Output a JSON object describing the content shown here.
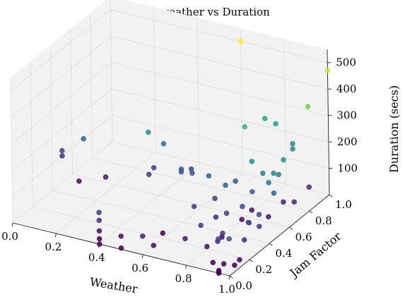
{
  "chart_data": {
    "type": "scatter3d",
    "title": "JF vs weather vs Duration",
    "xlabel": "Weather",
    "ylabel": "Jam Factor",
    "zlabel": "Duration (secs)",
    "xlim": [
      0.0,
      1.0
    ],
    "ylim": [
      0.0,
      1.0
    ],
    "zlim": [
      0,
      550
    ],
    "xticks": [
      "0.0",
      "0.2",
      "0.4",
      "0.6",
      "0.8",
      "1.0"
    ],
    "yticks": [
      "0.0",
      "0.2",
      "0.4",
      "0.6",
      "0.8",
      "1.0"
    ],
    "zticks": [
      "100",
      "200",
      "300",
      "400",
      "500"
    ],
    "zticks_values": [
      100,
      200,
      300,
      400,
      500
    ],
    "grid": true,
    "colormap": "viridis",
    "color_by": "z",
    "color_range": [
      30,
      500
    ],
    "pane_color": "#f2f2f2",
    "points": [
      {
        "x": 0.0,
        "y": 0.5,
        "z": 120
      },
      {
        "x": 0.0,
        "y": 0.5,
        "z": 100
      },
      {
        "x": 0.1,
        "y": 0.5,
        "z": 185
      },
      {
        "x": 0.1,
        "y": 0.45,
        "z": 40
      },
      {
        "x": 0.2,
        "y": 0.5,
        "z": 60
      },
      {
        "x": 0.4,
        "y": 0.5,
        "z": 270
      },
      {
        "x": 0.4,
        "y": 0.65,
        "z": 180
      },
      {
        "x": 0.4,
        "y": 0.5,
        "z": 110
      },
      {
        "x": 0.4,
        "y": 0.55,
        "z": 120
      },
      {
        "x": 0.4,
        "y": 0.0,
        "z": 120
      },
      {
        "x": 0.4,
        "y": 0.0,
        "z": 90
      },
      {
        "x": 0.4,
        "y": 0.0,
        "z": 50
      },
      {
        "x": 0.4,
        "y": 0.0,
        "z": 20
      },
      {
        "x": 0.4,
        "y": 0.0,
        "z": 0
      },
      {
        "x": 0.5,
        "y": 0.0,
        "z": 50
      },
      {
        "x": 0.5,
        "y": 0.0,
        "z": 5
      },
      {
        "x": 0.55,
        "y": 0.5,
        "z": 160
      },
      {
        "x": 0.55,
        "y": 0.5,
        "z": 150
      },
      {
        "x": 0.6,
        "y": 0.5,
        "z": 155
      },
      {
        "x": 0.55,
        "y": 0.6,
        "z": 130
      },
      {
        "x": 0.6,
        "y": 0.0,
        "z": 70
      },
      {
        "x": 0.65,
        "y": 0.0,
        "z": 45
      },
      {
        "x": 0.6,
        "y": 0.2,
        "z": 20
      },
      {
        "x": 0.6,
        "y": 1.0,
        "z": 500
      },
      {
        "x": 1.0,
        "y": 1.0,
        "z": 470
      },
      {
        "x": 1.0,
        "y": 0.8,
        "z": 395
      },
      {
        "x": 0.8,
        "y": 0.8,
        "z": 310
      },
      {
        "x": 0.85,
        "y": 0.8,
        "z": 300
      },
      {
        "x": 0.8,
        "y": 0.6,
        "z": 340
      },
      {
        "x": 0.95,
        "y": 0.75,
        "z": 260
      },
      {
        "x": 0.95,
        "y": 0.75,
        "z": 240
      },
      {
        "x": 1.0,
        "y": 0.55,
        "z": 270
      },
      {
        "x": 0.9,
        "y": 0.45,
        "z": 275
      },
      {
        "x": 1.0,
        "y": 0.45,
        "z": 250
      },
      {
        "x": 1.0,
        "y": 0.5,
        "z": 230
      },
      {
        "x": 0.95,
        "y": 0.45,
        "z": 240
      },
      {
        "x": 1.0,
        "y": 0.4,
        "z": 230
      },
      {
        "x": 0.8,
        "y": 0.5,
        "z": 165
      },
      {
        "x": 0.8,
        "y": 0.4,
        "z": 180
      },
      {
        "x": 0.9,
        "y": 0.45,
        "z": 160
      },
      {
        "x": 1.0,
        "y": 0.45,
        "z": 175
      },
      {
        "x": 0.9,
        "y": 0.35,
        "z": 135
      },
      {
        "x": 1.0,
        "y": 0.3,
        "z": 140
      },
      {
        "x": 0.7,
        "y": 0.45,
        "z": 180
      },
      {
        "x": 0.75,
        "y": 0.4,
        "z": 120
      },
      {
        "x": 0.85,
        "y": 0.3,
        "z": 115
      },
      {
        "x": 0.8,
        "y": 0.3,
        "z": 90
      },
      {
        "x": 0.95,
        "y": 0.3,
        "z": 100
      },
      {
        "x": 1.0,
        "y": 0.3,
        "z": 95
      },
      {
        "x": 1.0,
        "y": 0.15,
        "z": 90
      },
      {
        "x": 0.8,
        "y": 0.15,
        "z": 105
      },
      {
        "x": 0.9,
        "y": 0.15,
        "z": 95
      },
      {
        "x": 0.7,
        "y": 0.3,
        "z": 110
      },
      {
        "x": 1.0,
        "y": 0.2,
        "z": 140
      },
      {
        "x": 0.9,
        "y": 0.1,
        "z": 80
      },
      {
        "x": 1.0,
        "y": 0.8,
        "z": 90
      },
      {
        "x": 1.0,
        "y": 0.65,
        "z": 80
      },
      {
        "x": 0.95,
        "y": 0.65,
        "z": 70
      },
      {
        "x": 0.95,
        "y": 0.5,
        "z": 60
      },
      {
        "x": 0.85,
        "y": 0.55,
        "z": 50
      },
      {
        "x": 0.85,
        "y": 0.45,
        "z": 45
      },
      {
        "x": 0.85,
        "y": 0.25,
        "z": 40
      },
      {
        "x": 0.75,
        "y": 0.1,
        "z": 60
      },
      {
        "x": 0.85,
        "y": 0.1,
        "z": 50
      },
      {
        "x": 1.0,
        "y": 0.0,
        "z": 140
      },
      {
        "x": 0.95,
        "y": 0.0,
        "z": 130
      },
      {
        "x": 1.0,
        "y": 0.1,
        "z": 30
      },
      {
        "x": 1.0,
        "y": 0.05,
        "z": 25
      },
      {
        "x": 0.95,
        "y": 0.05,
        "z": 20
      },
      {
        "x": 0.9,
        "y": 0.05,
        "z": 15
      },
      {
        "x": 0.95,
        "y": 0.0,
        "z": 0
      },
      {
        "x": 0.95,
        "y": 0.0,
        "z": 5
      },
      {
        "x": 0.95,
        "y": 0.0,
        "z": 10
      }
    ]
  }
}
